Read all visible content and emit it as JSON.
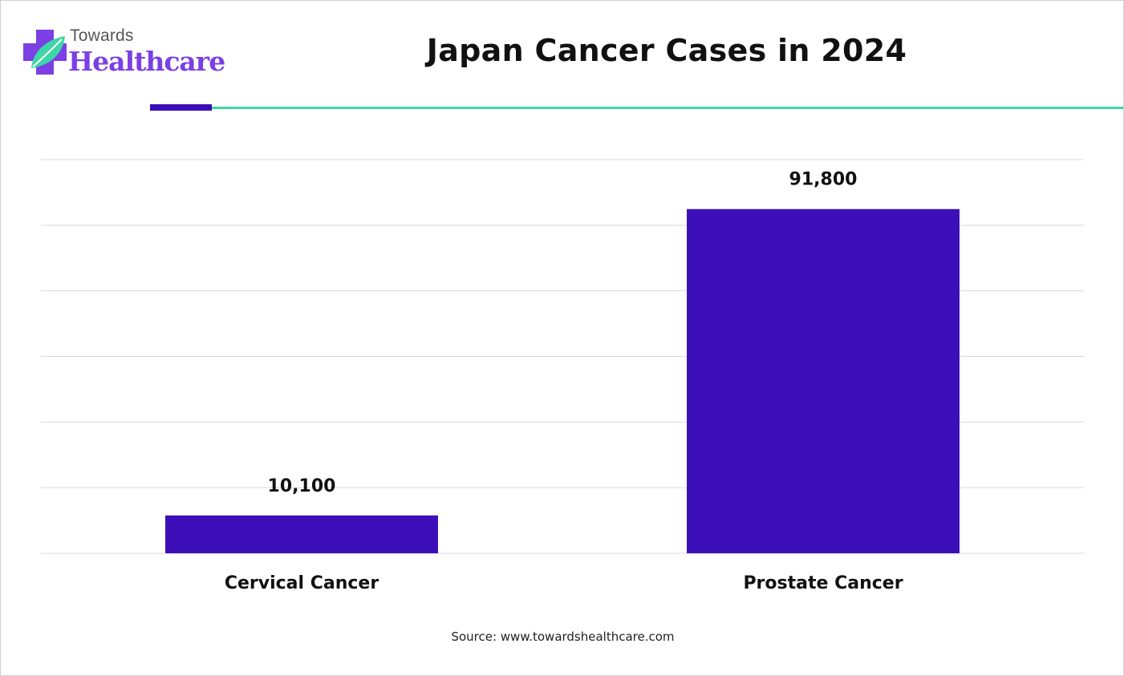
{
  "brand": {
    "top": "Towards",
    "main": "Healthcare",
    "colors": {
      "primary": "#7b3fe4",
      "leaf": "#3ed6a6"
    }
  },
  "chart_data": {
    "type": "bar",
    "title": "Japan Cancer Cases in 2024",
    "categories": [
      "Cervical Cancer",
      "Prostate Cancer"
    ],
    "values": [
      10100,
      91800
    ],
    "value_labels": [
      "10,100",
      "91,800"
    ],
    "ylim": [
      0,
      105000
    ],
    "grid": true,
    "bar_color": "#3d0fb8",
    "xlabel": "",
    "ylabel": ""
  },
  "source": "Source: www.towardshealthcare.com",
  "colors": {
    "accent_purple": "#3b0fb5",
    "accent_teal": "#3ed6a6",
    "gridline": "#d9d9d9"
  }
}
